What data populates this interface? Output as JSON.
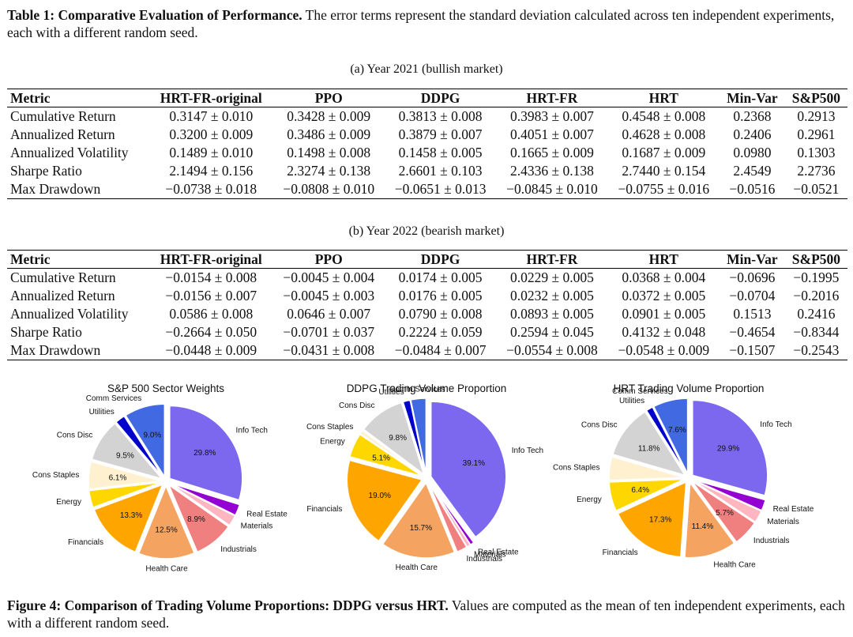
{
  "table_caption": {
    "label": "Table 1: Comparative Evaluation of Performance.",
    "text": " The error terms represent the standard deviation calculated across ten independent experiments, each with a different random seed."
  },
  "tables": [
    {
      "subcaption": "(a) Year 2021 (bullish market)",
      "headers": [
        "Metric",
        "HRT-FR-original",
        "PPO",
        "DDPG",
        "HRT-FR",
        "HRT",
        "Min-Var",
        "S&P500"
      ],
      "rows": [
        [
          "Cumulative Return",
          "0.3147 ± 0.010",
          "0.3428 ± 0.009",
          "0.3813 ± 0.008",
          "0.3983 ± 0.007",
          "0.4548 ± 0.008",
          "0.2368",
          "0.2913"
        ],
        [
          "Annualized Return",
          "0.3200 ± 0.009",
          "0.3486 ± 0.009",
          "0.3879 ± 0.007",
          "0.4051 ± 0.007",
          "0.4628 ± 0.008",
          "0.2406",
          "0.2961"
        ],
        [
          "Annualized Volatility",
          "0.1489 ± 0.010",
          "0.1498 ± 0.008",
          "0.1458 ± 0.005",
          "0.1665 ± 0.009",
          "0.1687 ± 0.009",
          "0.0980",
          "0.1303"
        ],
        [
          "Sharpe Ratio",
          "2.1494 ± 0.156",
          "2.3274 ± 0.138",
          "2.6601 ± 0.103",
          "2.4336 ± 0.138",
          "2.7440 ± 0.154",
          "2.4549",
          "2.2736"
        ],
        [
          "Max Drawdown",
          "−0.0738 ± 0.018",
          "−0.0808 ± 0.010",
          "−0.0651 ± 0.013",
          "−0.0845 ± 0.010",
          "−0.0755 ± 0.016",
          "−0.0516",
          "−0.0521"
        ]
      ]
    },
    {
      "subcaption": "(b) Year 2022 (bearish market)",
      "headers": [
        "Metric",
        "HRT-FR-original",
        "PPO",
        "DDPG",
        "HRT-FR",
        "HRT",
        "Min-Var",
        "S&P500"
      ],
      "rows": [
        [
          "Cumulative Return",
          "−0.0154 ± 0.008",
          "−0.0045 ± 0.004",
          "0.0174 ± 0.005",
          "0.0229 ± 0.005",
          "0.0368 ± 0.004",
          "−0.0696",
          "−0.1995"
        ],
        [
          "Annualized Return",
          "−0.0156 ± 0.007",
          "−0.0045 ± 0.003",
          "0.0176 ± 0.005",
          "0.0232 ± 0.005",
          "0.0372 ± 0.005",
          "−0.0704",
          "−0.2016"
        ],
        [
          "Annualized Volatility",
          "0.0586 ± 0.008",
          "0.0646 ± 0.007",
          "0.0790 ± 0.008",
          "0.0893 ± 0.005",
          "0.0901 ± 0.005",
          "0.1513",
          "0.2416"
        ],
        [
          "Sharpe Ratio",
          "−0.2664 ± 0.050",
          "−0.0701 ± 0.037",
          "0.2224 ± 0.059",
          "0.2594 ± 0.045",
          "0.4132 ± 0.048",
          "−0.4654",
          "−0.8344"
        ],
        [
          "Max Drawdown",
          "−0.0448 ± 0.009",
          "−0.0431 ± 0.008",
          "−0.0484 ± 0.007",
          "−0.0554 ± 0.008",
          "−0.0548 ± 0.009",
          "−0.1507",
          "−0.2543"
        ]
      ]
    }
  ],
  "chart_data": [
    {
      "type": "pie",
      "title": "S&P 500 Sector Weights",
      "slices": [
        {
          "label": "Info Tech",
          "value": 29.8,
          "pct_label": "29.8%",
          "color": "#7b68ee"
        },
        {
          "label": "Real Estate",
          "value": 2.5,
          "pct_label": "",
          "color": "#9400d3"
        },
        {
          "label": "Materials",
          "value": 2.4,
          "pct_label": "",
          "color": "#ffb6c1"
        },
        {
          "label": "Industrials",
          "value": 8.9,
          "pct_label": "8.9%",
          "color": "#f08080"
        },
        {
          "label": "Health Care",
          "value": 12.5,
          "pct_label": "12.5%",
          "color": "#f4a460"
        },
        {
          "label": "Financials",
          "value": 13.3,
          "pct_label": "13.3%",
          "color": "#ffa500"
        },
        {
          "label": "Energy",
          "value": 3.8,
          "pct_label": "",
          "color": "#ffd700"
        },
        {
          "label": "Cons Staples",
          "value": 6.1,
          "pct_label": "6.1%",
          "color": "#fff0d0"
        },
        {
          "label": "Cons Disc",
          "value": 9.5,
          "pct_label": "9.5%",
          "color": "#d3d3d3"
        },
        {
          "label": "Utilities",
          "value": 2.2,
          "pct_label": "",
          "color": "#0000cd"
        },
        {
          "label": "Comm Services",
          "value": 9.0,
          "pct_label": "9.0%",
          "color": "#4169e1"
        }
      ]
    },
    {
      "type": "pie",
      "title": "DDPG Trading Volume Proportion",
      "slices": [
        {
          "label": "Info Tech",
          "value": 39.1,
          "pct_label": "39.1%",
          "color": "#7b68ee"
        },
        {
          "label": "Real Estate",
          "value": 0.8,
          "pct_label": "",
          "color": "#9400d3"
        },
        {
          "label": "Materials",
          "value": 0.8,
          "pct_label": "",
          "color": "#ffb6c1"
        },
        {
          "label": "Industrials",
          "value": 2.2,
          "pct_label": "",
          "color": "#f08080"
        },
        {
          "label": "Health Care",
          "value": 15.7,
          "pct_label": "15.7%",
          "color": "#f4a460"
        },
        {
          "label": "Financials",
          "value": 19.0,
          "pct_label": "19.0%",
          "color": "#ffa500"
        },
        {
          "label": "Energy",
          "value": 5.1,
          "pct_label": "5.1%",
          "color": "#ffd700"
        },
        {
          "label": "Cons Staples",
          "value": 0.8,
          "pct_label": "",
          "color": "#fff0d0"
        },
        {
          "label": "Cons Disc",
          "value": 9.8,
          "pct_label": "9.8%",
          "color": "#d3d3d3"
        },
        {
          "label": "Utilities",
          "value": 1.5,
          "pct_label": "",
          "color": "#0000cd"
        },
        {
          "label": "Comm Services",
          "value": 3.2,
          "pct_label": "",
          "color": "#4169e1"
        }
      ]
    },
    {
      "type": "pie",
      "title": "HRT Trading Volume Proportion",
      "slices": [
        {
          "label": "Info Tech",
          "value": 29.9,
          "pct_label": "29.9%",
          "color": "#7b68ee"
        },
        {
          "label": "Real Estate",
          "value": 2.4,
          "pct_label": "",
          "color": "#9400d3"
        },
        {
          "label": "Materials",
          "value": 2.7,
          "pct_label": "",
          "color": "#ffb6c1"
        },
        {
          "label": "Industrials",
          "value": 5.7,
          "pct_label": "5.7%",
          "color": "#f08080"
        },
        {
          "label": "Health Care",
          "value": 11.4,
          "pct_label": "11.4%",
          "color": "#f4a460"
        },
        {
          "label": "Financials",
          "value": 17.3,
          "pct_label": "17.3%",
          "color": "#ffa500"
        },
        {
          "label": "Energy",
          "value": 6.4,
          "pct_label": "6.4%",
          "color": "#ffd700"
        },
        {
          "label": "Cons Staples",
          "value": 5.2,
          "pct_label": "",
          "color": "#fff0d0"
        },
        {
          "label": "Cons Disc",
          "value": 11.8,
          "pct_label": "11.8%",
          "color": "#d3d3d3"
        },
        {
          "label": "Utilities",
          "value": 1.5,
          "pct_label": "",
          "color": "#0000cd"
        },
        {
          "label": "Comm Services",
          "value": 7.6,
          "pct_label": "7.6%",
          "color": "#4169e1"
        }
      ]
    }
  ],
  "figure_caption": {
    "label": "Figure 4: Comparison of Trading Volume Proportions: DDPG versus HRT.",
    "text": " Values are computed as the mean of ten independent experiments, each with a different random seed."
  }
}
